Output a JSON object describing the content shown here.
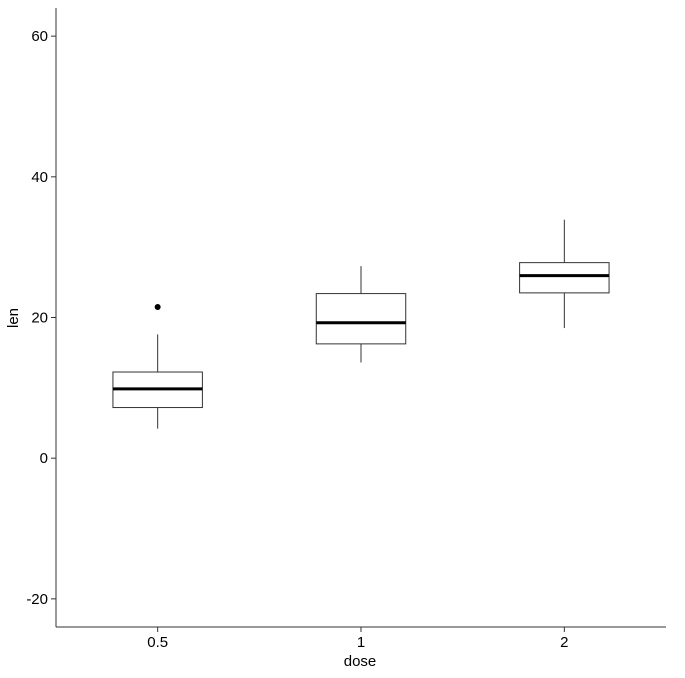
{
  "chart_data": {
    "type": "box",
    "xlabel": "dose",
    "ylabel": "len",
    "ylim": [
      -24,
      64
    ],
    "y_ticks": [
      60,
      40,
      20,
      0,
      -20
    ],
    "y_tick_labels": [
      "60",
      "40",
      "20",
      "0",
      "-20"
    ],
    "categories": [
      "0.5",
      "1",
      "2"
    ],
    "boxes": [
      {
        "category": "0.5",
        "whisker_low": 4.2,
        "q1": 7.2,
        "median": 9.85,
        "q3": 12.25,
        "whisker_high": 17.6,
        "outliers": [
          21.5
        ]
      },
      {
        "category": "1",
        "whisker_low": 13.6,
        "q1": 16.25,
        "median": 19.25,
        "q3": 23.4,
        "whisker_high": 27.3,
        "outliers": []
      },
      {
        "category": "2",
        "whisker_low": 18.5,
        "q1": 23.5,
        "median": 25.95,
        "q3": 27.8,
        "whisker_high": 33.9,
        "outliers": []
      }
    ],
    "grid": false,
    "legend": "none",
    "colors": {
      "box_fill": "#ffffff",
      "box_stroke": "#333333",
      "median": "#000000",
      "outlier": "#000000",
      "axis": "#333333"
    }
  }
}
